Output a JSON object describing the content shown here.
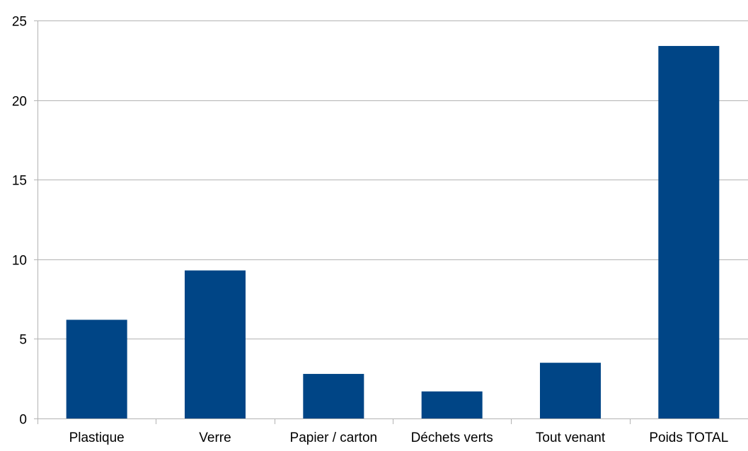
{
  "chart_data": {
    "type": "bar",
    "title": "",
    "xlabel": "",
    "ylabel": "",
    "categories": [
      "Plastique",
      "Verre",
      "Papier / carton",
      "Déchets verts",
      "Tout venant",
      "Poids TOTAL"
    ],
    "series": [
      {
        "values": [
          6.2,
          9.3,
          2.8,
          1.7,
          3.5,
          23.4
        ]
      }
    ],
    "ylim": [
      0,
      25
    ],
    "yticks": [
      "0",
      "5",
      "10",
      "15",
      "20",
      "25"
    ],
    "grid": true,
    "legend": "none",
    "colors": {
      "bar": "#004586",
      "grid": "#b3b3b3",
      "axis": "#b3b3b3"
    }
  }
}
